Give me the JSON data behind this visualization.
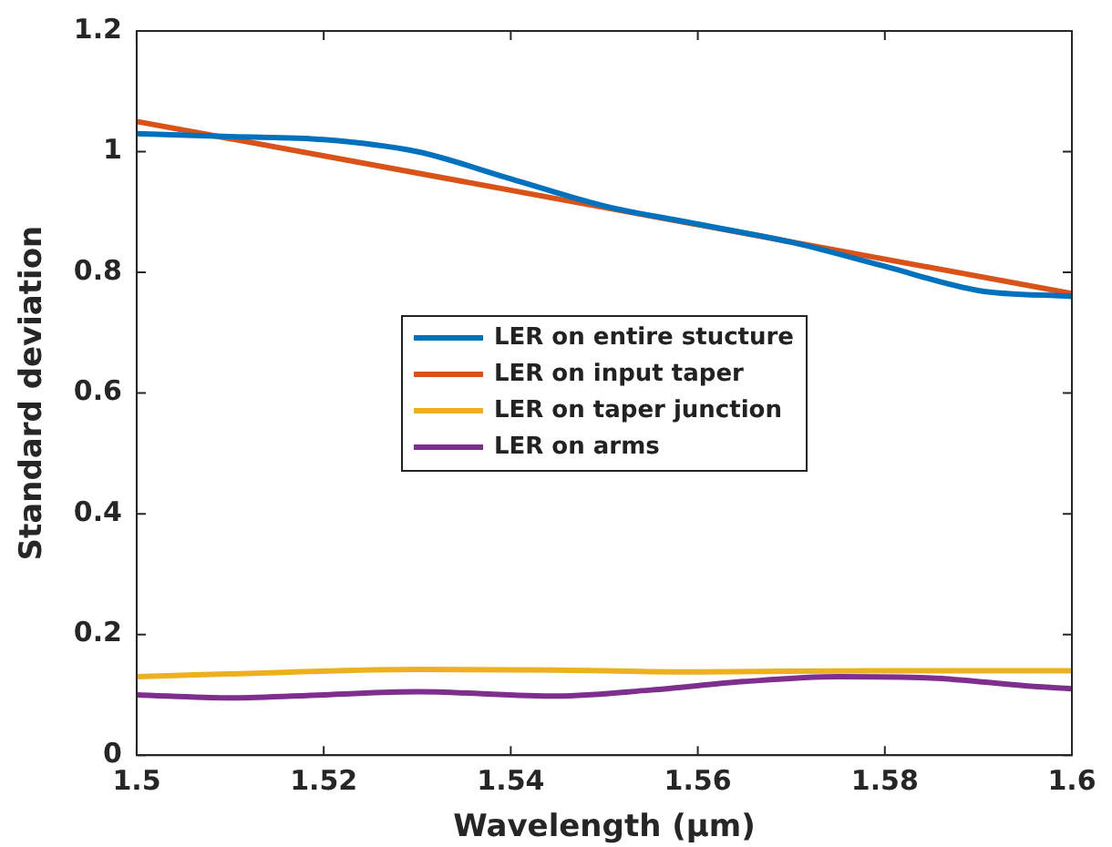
{
  "chart_data": {
    "type": "line",
    "xlabel": "Wavelength (μm)",
    "ylabel": "Standard deviation",
    "xlim": [
      1.5,
      1.6
    ],
    "xticks": [
      1.5,
      1.52,
      1.54,
      1.56,
      1.58,
      1.6
    ],
    "ylim": [
      0,
      1.2
    ],
    "yticks": [
      0,
      0.2,
      0.4,
      0.6,
      0.8,
      1,
      1.2
    ],
    "grid": false,
    "legend": "center",
    "marker": "none",
    "line_style": "solid",
    "series": [
      {
        "name": "LER on entire stucture",
        "color": "#0072bd",
        "x": [
          1.5,
          1.51,
          1.52,
          1.53,
          1.54,
          1.55,
          1.56,
          1.57,
          1.58,
          1.59,
          1.6
        ],
        "values": [
          1.03,
          1.025,
          1.02,
          1.0,
          0.955,
          0.91,
          0.88,
          0.85,
          0.81,
          0.77,
          0.76
        ]
      },
      {
        "name": "LER on input taper",
        "color": "#d95319",
        "x": [
          1.5,
          1.6
        ],
        "values": [
          1.05,
          0.765
        ]
      },
      {
        "name": "LER on taper junction",
        "color": "#edb120",
        "x": [
          1.5,
          1.515,
          1.53,
          1.545,
          1.56,
          1.58,
          1.6
        ],
        "values": [
          0.13,
          0.137,
          0.142,
          0.141,
          0.138,
          0.14,
          0.14
        ]
      },
      {
        "name": "LER on arms",
        "color": "#7e2f8e",
        "x": [
          1.5,
          1.51,
          1.52,
          1.53,
          1.545,
          1.555,
          1.565,
          1.575,
          1.585,
          1.595,
          1.6
        ],
        "values": [
          0.1,
          0.095,
          0.1,
          0.105,
          0.098,
          0.108,
          0.122,
          0.13,
          0.128,
          0.115,
          0.11
        ]
      }
    ]
  }
}
